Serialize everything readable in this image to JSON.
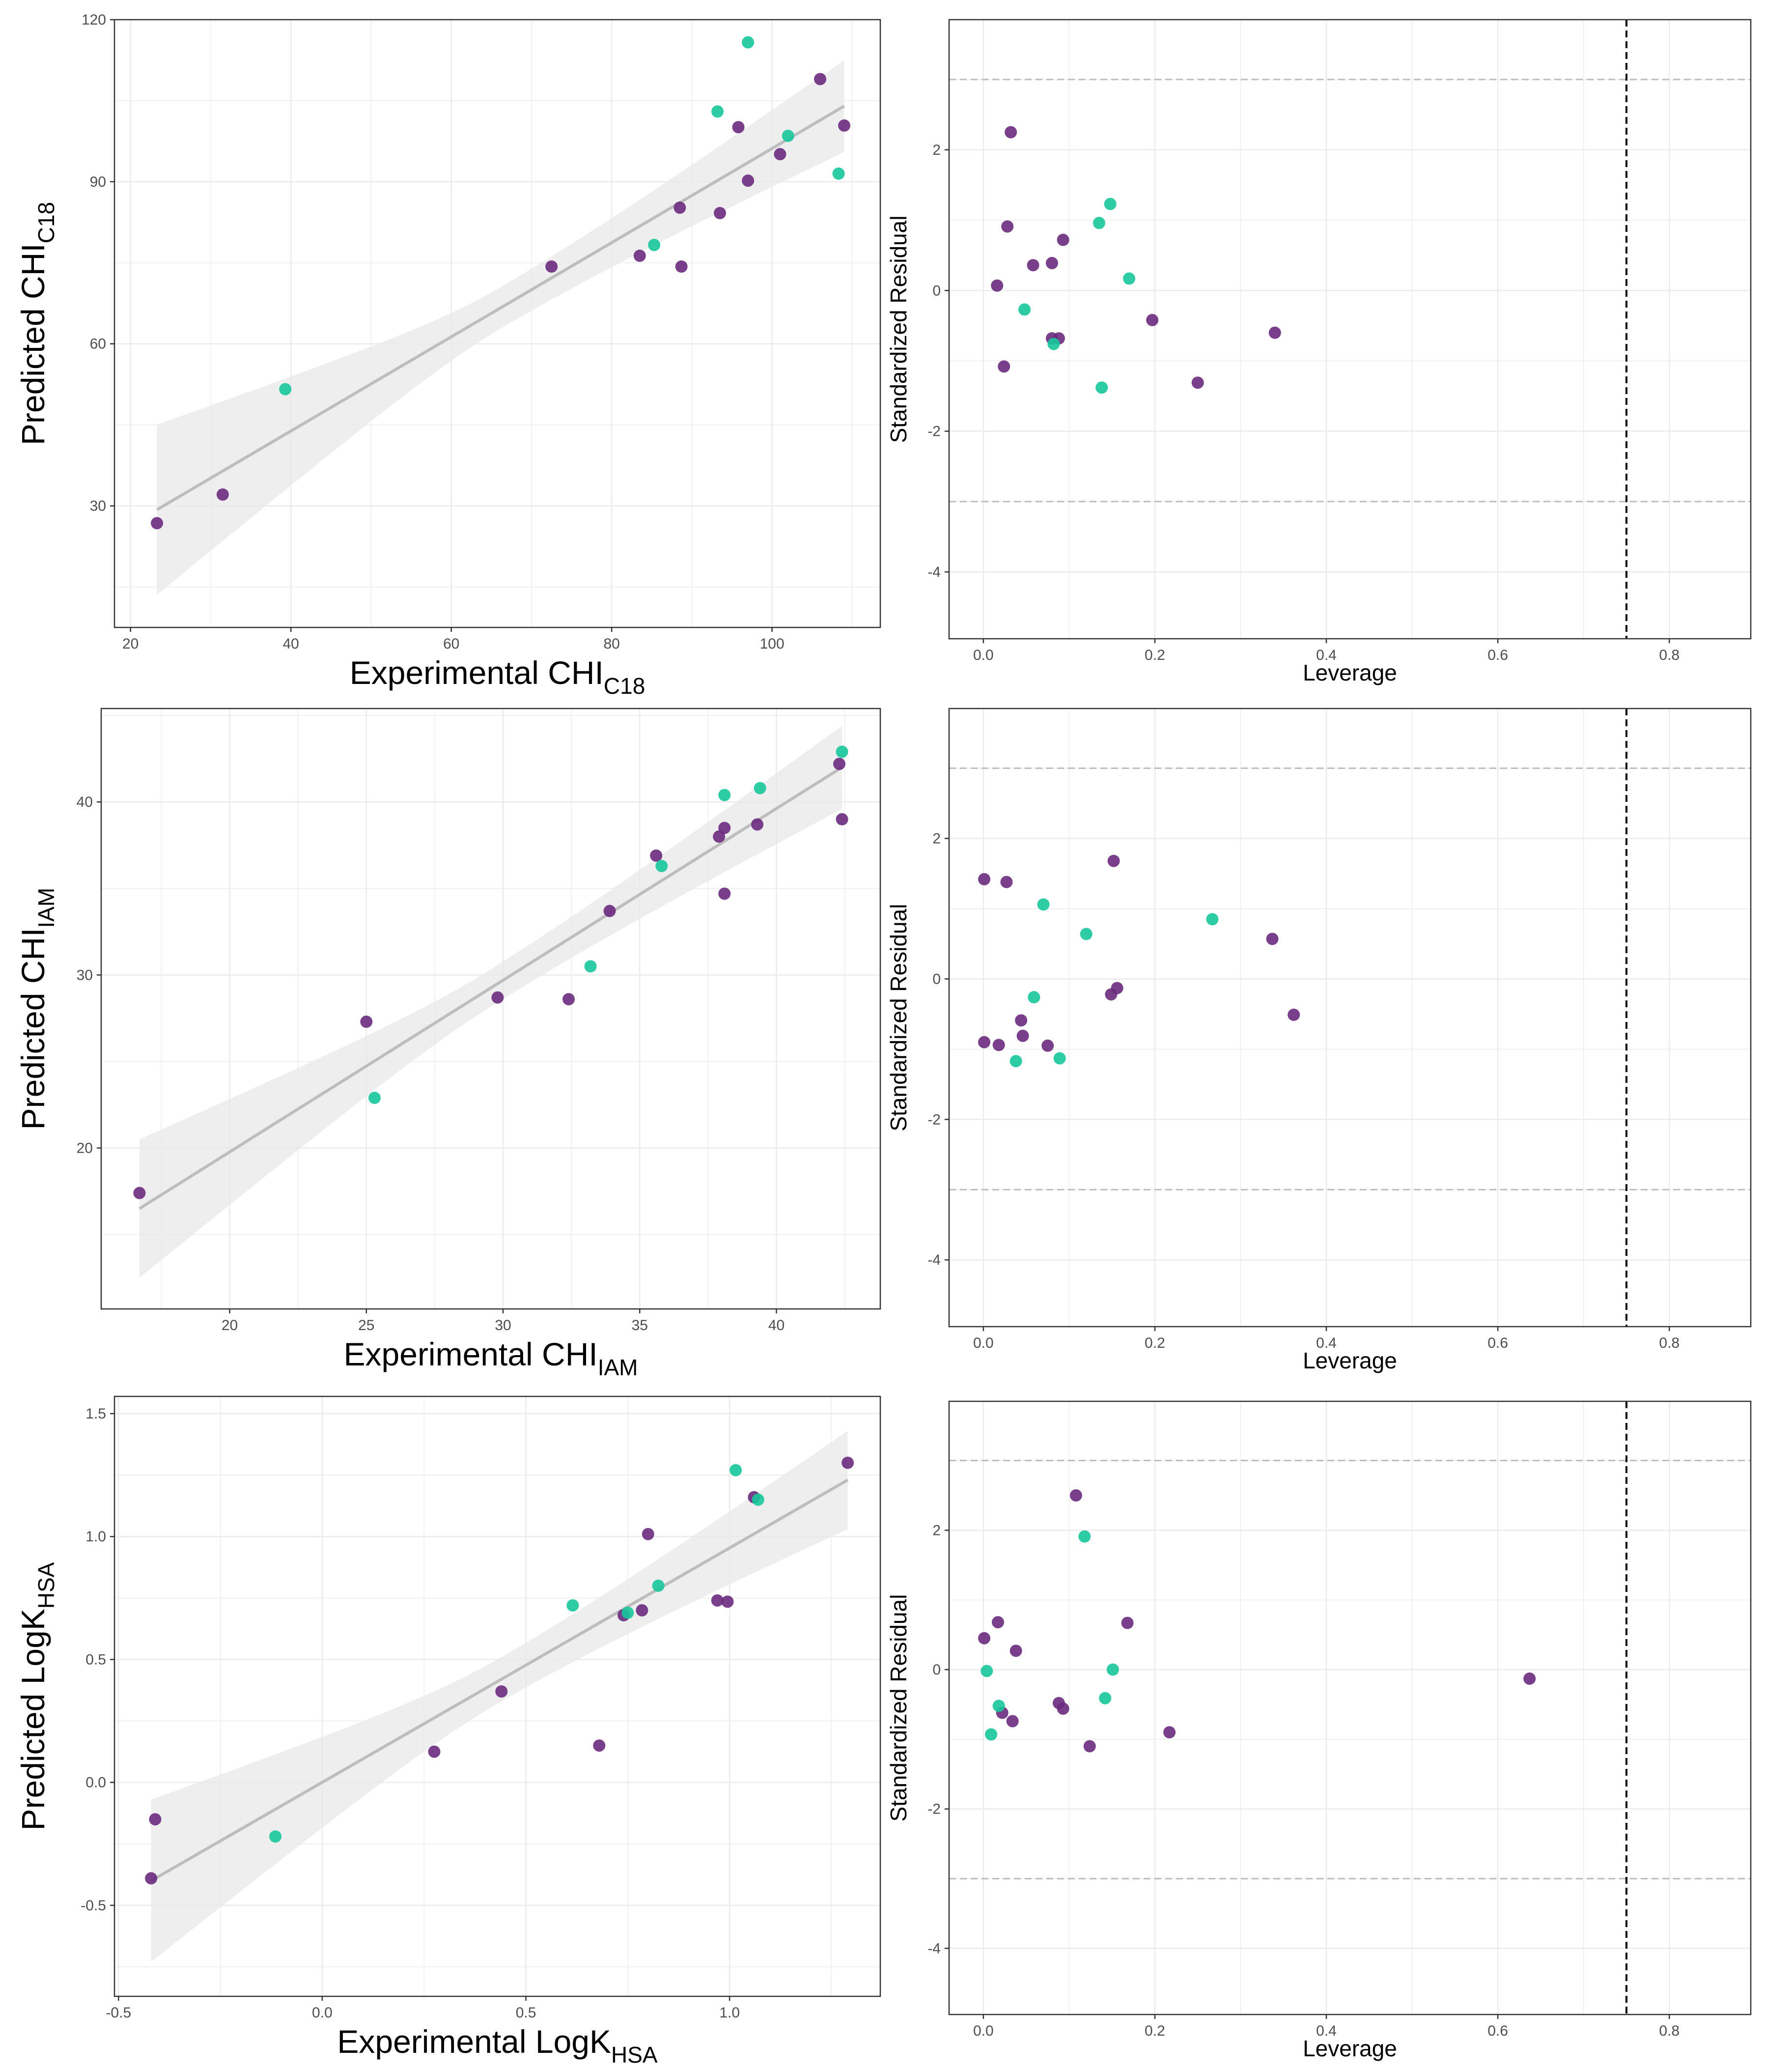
{
  "figure": {
    "colors": {
      "training": "#6a2a7e",
      "test": "#16c79a",
      "fit_line": "#bdbdbd",
      "confidence_band": "#e8e8e8",
      "leverage_threshold": "#000000",
      "residual_limits": "#bdbdbd"
    }
  },
  "chart_data": [
    {
      "id": "chi-c18-fit",
      "type": "scatter",
      "xlabel": "Experimental CHI",
      "xlabel_sub": "C18",
      "ylabel": "Predicted CHI",
      "ylabel_sub": "C18",
      "xlim": [
        18,
        113.5
      ],
      "ylim": [
        7.5,
        120
      ],
      "xticks": [
        20,
        40,
        60,
        80,
        100
      ],
      "yticks": [
        30,
        60,
        90,
        120
      ],
      "xtick_labels": [
        "20",
        "40",
        "60",
        "80",
        "100"
      ],
      "ytick_labels": [
        "30",
        "60",
        "90",
        "120"
      ],
      "fit": {
        "x": [
          23.3,
          109
        ],
        "y": [
          29.3,
          104
        ],
        "ci_low": [
          13.5,
          96
        ],
        "ci_high": [
          45,
          113
        ]
      },
      "series": [
        {
          "name": "training",
          "points": [
            [
              23.3,
              26.8
            ],
            [
              31.5,
              32.1
            ],
            [
              72.5,
              74.3
            ],
            [
              83.5,
              76.3
            ],
            [
              88.5,
              85.2
            ],
            [
              88.7,
              74.3
            ],
            [
              93.5,
              84.2
            ],
            [
              95.8,
              100.1
            ],
            [
              97,
              90.2
            ],
            [
              101,
              95.1
            ],
            [
              106,
              109
            ],
            [
              109,
              100.4
            ]
          ]
        },
        {
          "name": "test",
          "points": [
            [
              39.3,
              51.6
            ],
            [
              85.3,
              78.3
            ],
            [
              93.2,
              103
            ],
            [
              97,
              115.8
            ],
            [
              102,
              98.5
            ],
            [
              108.3,
              91.5
            ]
          ]
        }
      ]
    },
    {
      "id": "chi-c18-leverage",
      "type": "scatter",
      "xlabel": "Leverage",
      "ylabel": "Standardized Residual",
      "xlim": [
        -0.04,
        0.895
      ],
      "ylim": [
        -4.95,
        3.85
      ],
      "xticks": [
        0,
        0.2,
        0.4,
        0.6,
        0.8
      ],
      "yticks": [
        -4,
        -2,
        0,
        2
      ],
      "xtick_labels": [
        "0.0",
        "0.2",
        "0.4",
        "0.6",
        "0.8"
      ],
      "ytick_labels": [
        "-4",
        "-2",
        "0",
        "2"
      ],
      "hlines": [
        3,
        -3
      ],
      "vline": 0.75,
      "series": [
        {
          "name": "training",
          "points": [
            [
              0.016,
              0.07
            ],
            [
              0.024,
              -1.08
            ],
            [
              0.028,
              0.91
            ],
            [
              0.032,
              2.25
            ],
            [
              0.058,
              0.36
            ],
            [
              0.08,
              0.39
            ],
            [
              0.08,
              -0.68
            ],
            [
              0.088,
              -0.68
            ],
            [
              0.093,
              0.72
            ],
            [
              0.197,
              -0.42
            ],
            [
              0.25,
              -1.31
            ],
            [
              0.34,
              -0.6
            ]
          ]
        },
        {
          "name": "test",
          "points": [
            [
              0.048,
              -0.27
            ],
            [
              0.082,
              -0.76
            ],
            [
              0.135,
              0.96
            ],
            [
              0.138,
              -1.38
            ],
            [
              0.148,
              1.23
            ],
            [
              0.17,
              0.17
            ]
          ]
        }
      ]
    },
    {
      "id": "chi-iam-fit",
      "type": "scatter",
      "xlabel": "Experimental CHI",
      "xlabel_sub": "IAM",
      "ylabel": "Predicted CHI",
      "ylabel_sub": "IAM",
      "xlim": [
        15.3,
        43.8
      ],
      "ylim": [
        10.7,
        45.4
      ],
      "xticks": [
        20,
        25,
        30,
        35,
        40
      ],
      "yticks": [
        20,
        30,
        40
      ],
      "xtick_labels": [
        "20",
        "25",
        "30",
        "35",
        "40"
      ],
      "ytick_labels": [
        "20",
        "30",
        "40"
      ],
      "fit": {
        "x": [
          16.7,
          42.4
        ],
        "y": [
          16.5,
          42
        ],
        "ci_low": [
          12.5,
          40
        ],
        "ci_high": [
          20.5,
          44.8
        ]
      },
      "series": [
        {
          "name": "training",
          "points": [
            [
              16.7,
              17.4
            ],
            [
              25,
              27.3
            ],
            [
              29.8,
              28.7
            ],
            [
              32.4,
              28.6
            ],
            [
              33.9,
              33.7
            ],
            [
              35.6,
              36.9
            ],
            [
              37.9,
              38.0
            ],
            [
              38.1,
              38.5
            ],
            [
              38.1,
              34.7
            ],
            [
              39.3,
              38.7
            ],
            [
              42.3,
              42.2
            ],
            [
              42.4,
              39.0
            ]
          ]
        },
        {
          "name": "test",
          "points": [
            [
              25.3,
              22.9
            ],
            [
              33.2,
              30.5
            ],
            [
              35.8,
              36.3
            ],
            [
              38.1,
              40.4
            ],
            [
              39.4,
              40.8
            ],
            [
              42.4,
              42.9
            ]
          ]
        }
      ]
    },
    {
      "id": "chi-iam-leverage",
      "type": "scatter",
      "xlabel": "Leverage",
      "ylabel": "Standardized Residual",
      "xlim": [
        -0.04,
        0.895
      ],
      "ylim": [
        -4.95,
        3.85
      ],
      "xticks": [
        0,
        0.2,
        0.4,
        0.6,
        0.8
      ],
      "yticks": [
        -4,
        -2,
        0,
        2
      ],
      "xtick_labels": [
        "0.0",
        "0.2",
        "0.4",
        "0.6",
        "0.8"
      ],
      "ytick_labels": [
        "-4",
        "-2",
        "0",
        "2"
      ],
      "hlines": [
        3,
        -3
      ],
      "vline": 0.75,
      "series": [
        {
          "name": "training",
          "points": [
            [
              0.001,
              1.42
            ],
            [
              0.001,
              -0.9
            ],
            [
              0.018,
              -0.94
            ],
            [
              0.027,
              1.38
            ],
            [
              0.044,
              -0.59
            ],
            [
              0.046,
              -0.81
            ],
            [
              0.075,
              -0.95
            ],
            [
              0.149,
              -0.22
            ],
            [
              0.152,
              1.68
            ],
            [
              0.156,
              -0.13
            ],
            [
              0.337,
              0.57
            ],
            [
              0.362,
              -0.51
            ]
          ]
        },
        {
          "name": "test",
          "points": [
            [
              0.038,
              -1.17
            ],
            [
              0.059,
              -0.26
            ],
            [
              0.07,
              1.06
            ],
            [
              0.12,
              0.64
            ],
            [
              0.089,
              -1.13
            ],
            [
              0.267,
              0.85
            ]
          ]
        }
      ]
    },
    {
      "id": "logk-hsa-fit",
      "type": "scatter",
      "xlabel": "Experimental LogK",
      "xlabel_sub": "HSA",
      "ylabel": "Predicted LogK",
      "ylabel_sub": "HSA",
      "xlim": [
        -0.51,
        1.37
      ],
      "ylim": [
        -0.87,
        1.57
      ],
      "xticks": [
        -0.5,
        0,
        0.5,
        1
      ],
      "yticks": [
        -0.5,
        0,
        0.5,
        1,
        1.5
      ],
      "xtick_labels": [
        "-0.5",
        "0.0",
        "0.5",
        "1.0"
      ],
      "ytick_labels": [
        "-0.5",
        "0.0",
        "0.5",
        "1.0",
        "1.5"
      ],
      "fit": {
        "x": [
          -0.42,
          1.29
        ],
        "y": [
          -0.4,
          1.23
        ],
        "ci_low": [
          -0.73,
          1.03
        ],
        "ci_high": [
          -0.07,
          1.43
        ]
      },
      "series": [
        {
          "name": "training",
          "points": [
            [
              -0.42,
              -0.39
            ],
            [
              -0.41,
              -0.15
            ],
            [
              0.275,
              0.125
            ],
            [
              0.44,
              0.37
            ],
            [
              0.68,
              0.15
            ],
            [
              0.74,
              0.68
            ],
            [
              0.785,
              0.7
            ],
            [
              0.8,
              1.01
            ],
            [
              0.97,
              0.74
            ],
            [
              0.995,
              0.735
            ],
            [
              1.06,
              1.16
            ],
            [
              1.29,
              1.3
            ]
          ]
        },
        {
          "name": "test",
          "points": [
            [
              -0.115,
              -0.22
            ],
            [
              0.615,
              0.72
            ],
            [
              0.75,
              0.69
            ],
            [
              0.825,
              0.8
            ],
            [
              1.015,
              1.27
            ],
            [
              1.07,
              1.15
            ]
          ]
        }
      ]
    },
    {
      "id": "logk-hsa-leverage",
      "type": "scatter",
      "xlabel": "Leverage",
      "ylabel": "Standardized Residual",
      "xlim": [
        -0.04,
        0.895
      ],
      "ylim": [
        -4.95,
        3.85
      ],
      "xticks": [
        0,
        0.2,
        0.4,
        0.6,
        0.8
      ],
      "yticks": [
        -4,
        -2,
        0,
        2
      ],
      "xtick_labels": [
        "0.0",
        "0.2",
        "0.4",
        "0.6",
        "0.8"
      ],
      "ytick_labels": [
        "-4",
        "-2",
        "0",
        "2"
      ],
      "hlines": [
        3,
        -3
      ],
      "vline": 0.75,
      "series": [
        {
          "name": "training",
          "points": [
            [
              0.001,
              0.45
            ],
            [
              0.017,
              0.68
            ],
            [
              0.022,
              -0.62
            ],
            [
              0.034,
              -0.74
            ],
            [
              0.038,
              0.27
            ],
            [
              0.088,
              -0.48
            ],
            [
              0.093,
              -0.56
            ],
            [
              0.108,
              2.5
            ],
            [
              0.124,
              -1.1
            ],
            [
              0.168,
              0.67
            ],
            [
              0.217,
              -0.9
            ],
            [
              0.637,
              -0.13
            ]
          ]
        },
        {
          "name": "test",
          "points": [
            [
              0.004,
              -0.02
            ],
            [
              0.009,
              -0.93
            ],
            [
              0.018,
              -0.52
            ],
            [
              0.118,
              1.91
            ],
            [
              0.142,
              -0.41
            ],
            [
              0.151,
              0.0
            ]
          ]
        }
      ]
    }
  ]
}
